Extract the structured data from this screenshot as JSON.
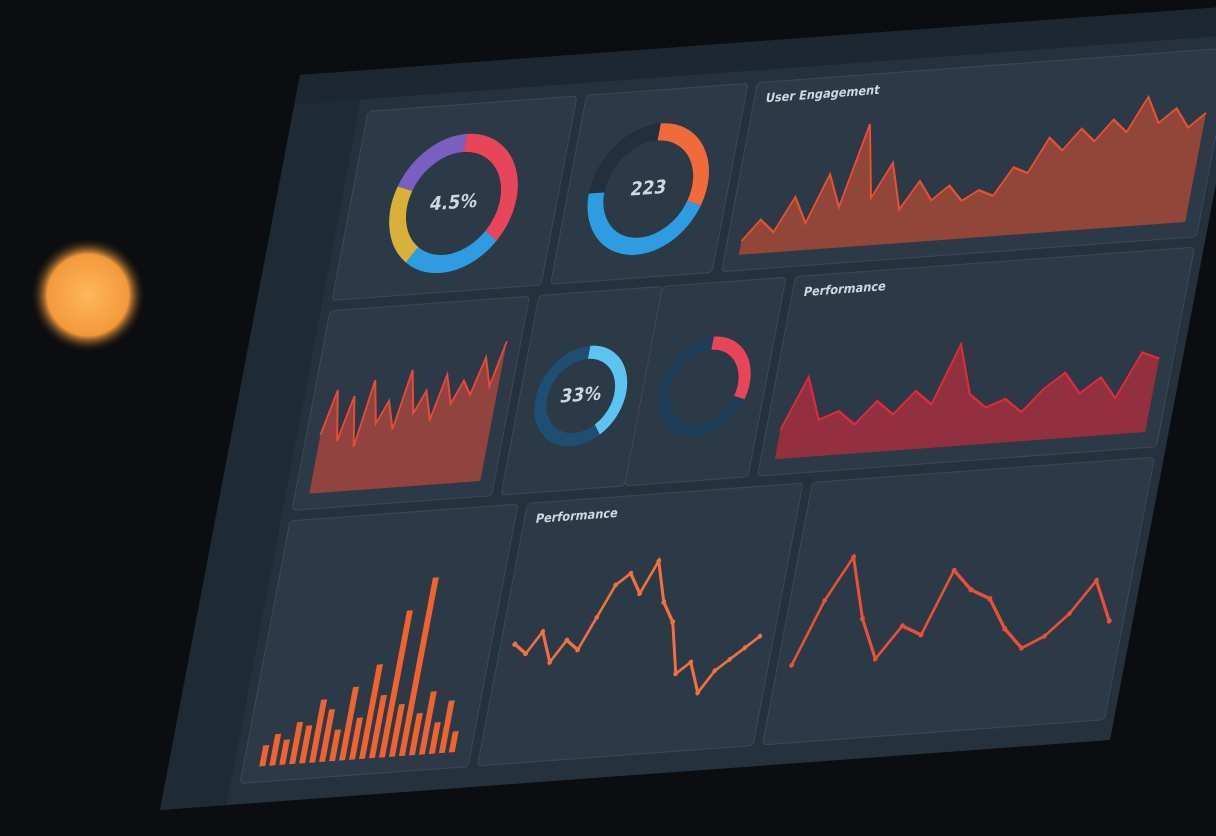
{
  "charts": [
    {
      "type": "pie",
      "label": "4.5%",
      "values": [
        35,
        25,
        20,
        20
      ],
      "colors": [
        "#e8455a",
        "#2f9be0",
        "#d9b13a",
        "#7a5fc0"
      ]
    },
    {
      "type": "pie",
      "label": "223",
      "values": [
        30,
        45,
        25
      ],
      "colors": [
        "#f06a3a",
        "#2f9be0",
        "#22303d"
      ]
    },
    {
      "type": "area",
      "title": "User Engagement",
      "color": "#e8502f",
      "ylim": [
        0,
        100
      ],
      "values": [
        10,
        25,
        15,
        40,
        20,
        55,
        30,
        90,
        35,
        60,
        25,
        45,
        30,
        40,
        28,
        35,
        30,
        50,
        45,
        70,
        60,
        75,
        65,
        80,
        70,
        95,
        75,
        85,
        70,
        80
      ]
    },
    {
      "type": "area",
      "color": "#e84a3a",
      "ylim": [
        0,
        100
      ],
      "values": [
        40,
        70,
        35,
        65,
        30,
        75,
        45,
        60,
        40,
        80,
        50,
        65,
        45,
        75,
        55,
        70,
        60,
        85,
        65,
        95
      ]
    },
    {
      "type": "pie",
      "label": "33%",
      "values": [
        40,
        60
      ],
      "colors": [
        "#5bc4f0",
        "#1f4e73"
      ]
    },
    {
      "type": "pie",
      "values": [
        30,
        70
      ],
      "colors": [
        "#e8455a",
        "#1f3d57"
      ]
    },
    {
      "type": "area",
      "title": "Performance",
      "color": "#e8283a",
      "ylim": [
        0,
        100
      ],
      "values": [
        20,
        55,
        25,
        30,
        20,
        35,
        25,
        40,
        30,
        70,
        35,
        25,
        30,
        20,
        35,
        45,
        30,
        40,
        25,
        55,
        50
      ]
    },
    {
      "type": "bar",
      "color": "#f0622f",
      "ylim": [
        0,
        100
      ],
      "values": [
        10,
        15,
        12,
        20,
        18,
        30,
        25,
        15,
        35,
        20,
        45,
        30,
        70,
        25,
        85,
        20,
        30,
        15,
        25,
        10
      ]
    },
    {
      "type": "line",
      "title": "Performance",
      "color": "#f07040",
      "ylim": [
        0,
        100
      ],
      "values": [
        50,
        45,
        55,
        40,
        50,
        45,
        60,
        75,
        80,
        70,
        85,
        65,
        55,
        30,
        35,
        20,
        30,
        35,
        40,
        45
      ]
    },
    {
      "type": "line",
      "color": "#e8503a",
      "ylim": [
        0,
        100
      ],
      "values": [
        30,
        60,
        80,
        50,
        30,
        45,
        40,
        70,
        60,
        55,
        40,
        30,
        35,
        45,
        60,
        40
      ]
    }
  ]
}
